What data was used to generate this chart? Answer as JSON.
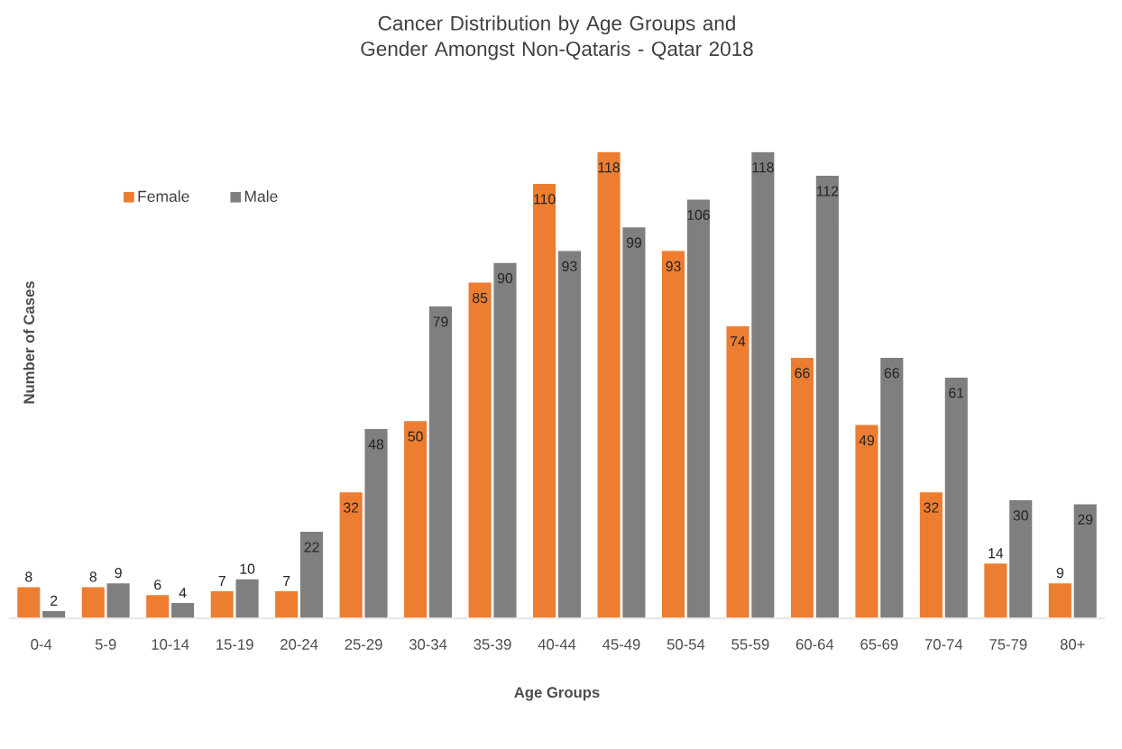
{
  "chart_data": {
    "type": "bar",
    "title": "Cancer Distribution by Age Groups and Gender Amongst Non-Qataris - Qatar 2018",
    "xlabel": "Age Groups",
    "ylabel": "Number of Cases",
    "categories": [
      "0-4",
      "5-9",
      "10-14",
      "15-19",
      "20-24",
      "25-29",
      "30-34",
      "35-39",
      "40-44",
      "45-49",
      "50-54",
      "55-59",
      "60-64",
      "65-69",
      "70-74",
      "75-79",
      "80+"
    ],
    "series": [
      {
        "name": "Female",
        "color": "#ed7d31",
        "values": [
          8,
          8,
          6,
          7,
          7,
          32,
          50,
          85,
          110,
          118,
          93,
          74,
          66,
          49,
          32,
          14,
          9
        ]
      },
      {
        "name": "Male",
        "color": "#7f7f7f",
        "values": [
          2,
          9,
          4,
          10,
          22,
          48,
          79,
          90,
          93,
          99,
          106,
          118,
          112,
          66,
          61,
          30,
          29
        ]
      }
    ],
    "data_labels": true,
    "legend": "top left"
  }
}
